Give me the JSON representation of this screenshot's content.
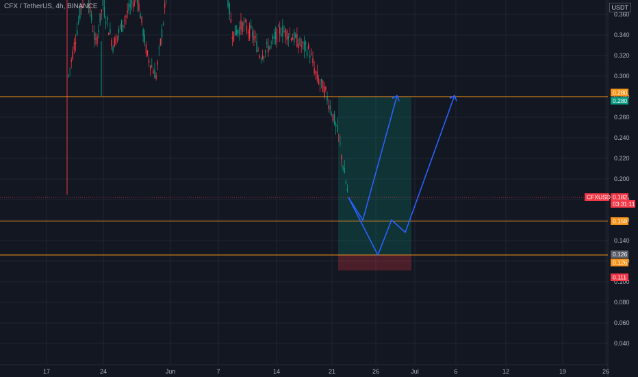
{
  "header": {
    "symbol_label": "CFX / TetherUS, 4h, BINANCE",
    "currency": "USDT"
  },
  "chart_data": {
    "type": "candlestick",
    "symbol": "CFX / TetherUS",
    "interval": "4h",
    "exchange": "BINANCE",
    "y_ticks": [
      0.04,
      0.06,
      0.08,
      0.1,
      0.12,
      0.14,
      0.16,
      0.18,
      0.2,
      0.22,
      0.24,
      0.26,
      0.28,
      0.3,
      0.32,
      0.34,
      0.36
    ],
    "y_tick_labels": [
      "0.040",
      "0.060",
      "0.080",
      "0.100",
      "0.120",
      "0.140",
      "0.160",
      "0.180",
      "0.200",
      "0.220",
      "0.240",
      "0.260",
      "0.280",
      "0.300",
      "0.320",
      "0.340",
      "0.360"
    ],
    "x_tick_labels": [
      "17",
      "24",
      "Jun",
      "7",
      "14",
      "21",
      "26",
      "Jul",
      "6",
      "12",
      "19",
      "26"
    ],
    "horizontal_lines": [
      {
        "price": 0.28,
        "color": "#f7931a"
      },
      {
        "price": 0.159,
        "color": "#f7931a"
      },
      {
        "price": 0.126,
        "color": "#f7931a"
      }
    ],
    "price_labels": [
      {
        "text": "0.280",
        "color": "#f7931a"
      },
      {
        "text": "0.280",
        "color": "#089981"
      },
      {
        "text": "CFXUSDT",
        "color": "#f23645"
      },
      {
        "text": "0.182",
        "color": "#f23645"
      },
      {
        "text": "03:31:11",
        "color": "#f23645"
      },
      {
        "text": "0.159",
        "color": "#f7931a"
      },
      {
        "text": "0.126",
        "color": "#5d606b"
      },
      {
        "text": "0.126",
        "color": "#f7931a"
      },
      {
        "text": "0.111",
        "color": "#f23645"
      }
    ],
    "last_price": 0.182,
    "position": {
      "entry": 0.126,
      "target": 0.28,
      "stop": 0.111
    },
    "projection_paths": [
      [
        [
          0.182,
          0
        ],
        [
          0.16,
          1
        ],
        [
          0.281,
          2
        ]
      ],
      [
        [
          0.182,
          0
        ],
        [
          0.126,
          1
        ],
        [
          0.16,
          2
        ],
        [
          0.148,
          3
        ],
        [
          0.281,
          4
        ]
      ]
    ],
    "colors": {
      "bg": "#131722",
      "up": "#089981",
      "down": "#f23645",
      "grid": "#1f2431",
      "axis_text": "#b2b5be",
      "projection": "#2962ff",
      "profit_zone": "rgba(8,153,129,0.22)",
      "loss_zone": "rgba(242,54,69,0.25)"
    }
  }
}
